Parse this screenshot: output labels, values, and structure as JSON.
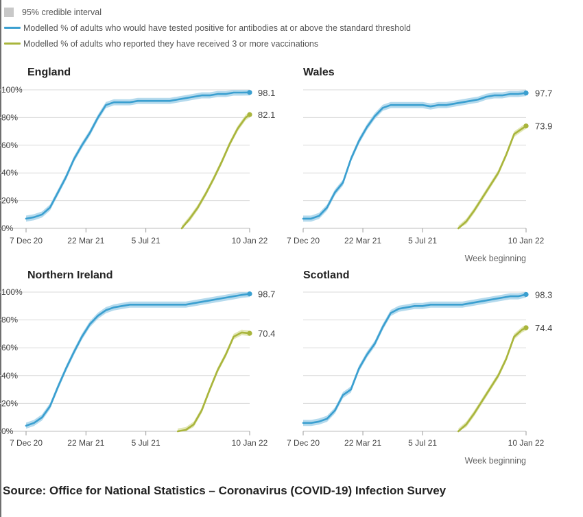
{
  "legend": {
    "ci_label": "95% credible interval",
    "antibody_label": "Modelled % of adults who would have tested positive for antibodies at or above the standard threshold",
    "vaccine_label": "Modelled % of adults who reported they have received 3 or more vaccinations"
  },
  "colors": {
    "antibody": "#3a9fd0",
    "antibody_band": "#a8d4ea",
    "vaccine": "#a9b53c",
    "vaccine_band": "#dde3a8",
    "grid": "#d9d9d9",
    "axis_text": "#444444",
    "ci_swatch": "#c8c8c8"
  },
  "source": "Source: Office for National Statistics – Coronavirus (COVID-19) Infection Survey",
  "chart_data": [
    {
      "type": "line",
      "title": "England",
      "x_ticks": [
        "7 Dec 20",
        "22 Mar 21",
        "5 Jul 21",
        "10 Jan 22"
      ],
      "y_ticks": [
        "0%",
        "20%",
        "40%",
        "60%",
        "80%",
        "100%"
      ],
      "ylim": [
        0,
        100
      ],
      "xlabel": "",
      "grid": true,
      "series": [
        {
          "key": "antibody",
          "end_label": "98.1",
          "x": [
            0,
            2,
            4,
            6,
            8,
            10,
            12,
            14,
            16,
            18,
            20,
            22,
            24,
            26,
            28,
            30,
            32,
            34,
            36,
            38,
            40,
            42,
            44,
            46,
            48,
            50,
            52,
            54,
            56
          ],
          "y": [
            7,
            8,
            10,
            15,
            26,
            37,
            50,
            60,
            69,
            80,
            89,
            91,
            91,
            91,
            92,
            92,
            92,
            92,
            92,
            93,
            94,
            95,
            96,
            96,
            97,
            97,
            98,
            98,
            98.1
          ]
        },
        {
          "key": "vaccine",
          "end_label": "82.1",
          "x": [
            39,
            41,
            43,
            45,
            47,
            49,
            51,
            53,
            55,
            56
          ],
          "y": [
            0,
            7,
            15,
            25,
            36,
            48,
            61,
            72,
            80,
            82.1
          ]
        }
      ]
    },
    {
      "type": "line",
      "title": "Wales",
      "x_ticks": [
        "7 Dec 20",
        "22 Mar 21",
        "5 Jul 21",
        "10 Jan 22"
      ],
      "ylim": [
        0,
        100
      ],
      "xlabel": "Week beginning",
      "grid": true,
      "series": [
        {
          "key": "antibody",
          "end_label": "97.7",
          "x": [
            0,
            2,
            4,
            6,
            8,
            10,
            12,
            14,
            16,
            18,
            20,
            22,
            24,
            26,
            28,
            30,
            32,
            34,
            36,
            38,
            40,
            42,
            44,
            46,
            48,
            50,
            52,
            54,
            56
          ],
          "y": [
            7,
            7,
            9,
            15,
            26,
            33,
            50,
            63,
            73,
            81,
            87,
            89,
            89,
            89,
            89,
            89,
            88,
            89,
            89,
            90,
            91,
            92,
            93,
            95,
            96,
            96,
            97,
            97,
            97.7
          ]
        },
        {
          "key": "vaccine",
          "end_label": "73.9",
          "x": [
            39,
            41,
            43,
            45,
            47,
            49,
            51,
            53,
            55,
            56
          ],
          "y": [
            0,
            5,
            13,
            22,
            31,
            40,
            53,
            68,
            72,
            73.9
          ]
        }
      ]
    },
    {
      "type": "line",
      "title": "Northern Ireland",
      "x_ticks": [
        "7 Dec 20",
        "22 Mar 21",
        "5 Jul 21",
        "10 Jan 22"
      ],
      "y_ticks": [
        "0%",
        "20%",
        "40%",
        "60%",
        "80%",
        "100%"
      ],
      "ylim": [
        0,
        100
      ],
      "xlabel": "",
      "grid": true,
      "series": [
        {
          "key": "antibody",
          "end_label": "98.7",
          "x": [
            0,
            2,
            4,
            6,
            8,
            10,
            12,
            14,
            16,
            18,
            20,
            22,
            24,
            26,
            28,
            30,
            32,
            34,
            36,
            38,
            40,
            42,
            44,
            46,
            48,
            50,
            52,
            54,
            56
          ],
          "y": [
            4,
            6,
            10,
            18,
            32,
            45,
            57,
            68,
            77,
            83,
            87,
            89,
            90,
            91,
            91,
            91,
            91,
            91,
            91,
            91,
            91,
            92,
            93,
            94,
            95,
            96,
            97,
            98,
            98.7
          ]
        },
        {
          "key": "vaccine",
          "end_label": "70.4",
          "x": [
            38,
            40,
            42,
            44,
            46,
            48,
            50,
            52,
            54,
            56
          ],
          "y": [
            0,
            1,
            5,
            15,
            30,
            44,
            55,
            68,
            71,
            70.4
          ]
        }
      ]
    },
    {
      "type": "line",
      "title": "Scotland",
      "x_ticks": [
        "7 Dec 20",
        "22 Mar 21",
        "5 Jul 21",
        "10 Jan 22"
      ],
      "ylim": [
        0,
        100
      ],
      "xlabel": "Week beginning",
      "grid": true,
      "series": [
        {
          "key": "antibody",
          "end_label": "98.3",
          "x": [
            0,
            2,
            4,
            6,
            8,
            10,
            12,
            14,
            16,
            18,
            20,
            22,
            24,
            26,
            28,
            30,
            32,
            34,
            36,
            38,
            40,
            42,
            44,
            46,
            48,
            50,
            52,
            54,
            56
          ],
          "y": [
            6,
            6,
            7,
            9,
            15,
            26,
            30,
            45,
            55,
            63,
            75,
            85,
            88,
            89,
            90,
            90,
            91,
            91,
            91,
            91,
            91,
            92,
            93,
            94,
            95,
            96,
            97,
            97,
            98.3
          ]
        },
        {
          "key": "vaccine",
          "end_label": "74.4",
          "x": [
            39,
            41,
            43,
            45,
            47,
            49,
            51,
            53,
            55,
            56
          ],
          "y": [
            0,
            5,
            13,
            22,
            31,
            40,
            52,
            68,
            73,
            74.4
          ]
        }
      ]
    }
  ]
}
